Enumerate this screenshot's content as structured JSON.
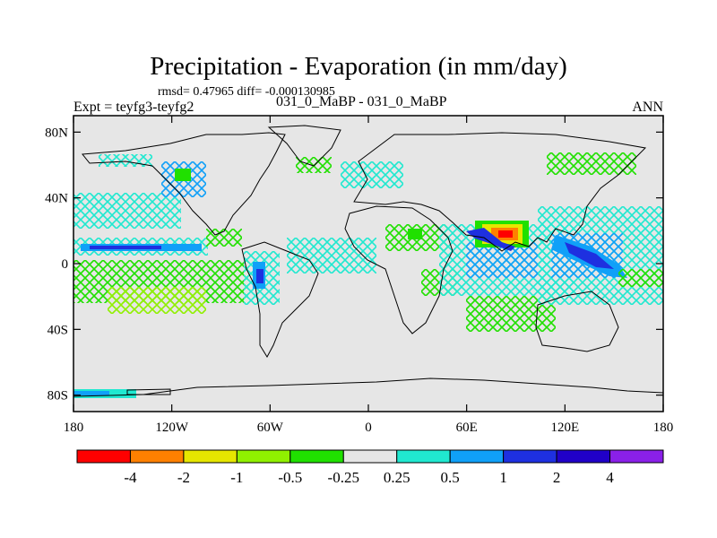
{
  "chart_data": {
    "type": "heatmap",
    "title": "Precipitation - Evaporation (in mm/day)",
    "stats": "rmsd= 0.47965 diff= -0.000130985",
    "experiment": "Expt = teyfg3-teyfg2",
    "subtitle": "031_0_MaBP - 031_0_MaBP",
    "season": "ANN",
    "x_ticks": [
      "180",
      "120W",
      "60W",
      "0",
      "60E",
      "120E",
      "180"
    ],
    "y_ticks": [
      "80N",
      "40N",
      "0",
      "40S",
      "80S"
    ],
    "xlim": [
      -180,
      180
    ],
    "ylim": [
      -90,
      90
    ],
    "colorbar": {
      "labels": [
        "-4",
        "-2",
        "-1",
        "-0.5",
        "-0.25",
        "0.25",
        "0.5",
        "1",
        "2",
        "4"
      ],
      "colors": [
        "#ff0000",
        "#ff8000",
        "#e6e600",
        "#90f000",
        "#20e000",
        "#e6e6e6",
        "#20e8d0",
        "#10a0f8",
        "#1e30e0",
        "#2000c8",
        "#8a20e8"
      ]
    },
    "background_color": "#e6e6e6",
    "features": [
      {
        "name": "itcz-pacific-positive",
        "type": "band",
        "lon": [
          -180,
          -105
        ],
        "lat": [
          5,
          12
        ],
        "level": "0.5"
      },
      {
        "name": "tropical-pacific-negative",
        "type": "hatch",
        "lon": [
          -180,
          -85
        ],
        "lat": [
          -20,
          0
        ],
        "level": "-0.5"
      },
      {
        "name": "north-pacific-positive",
        "type": "hatch",
        "lon": [
          -180,
          -110
        ],
        "lat": [
          25,
          40
        ],
        "level": "0.25"
      },
      {
        "name": "andes-positive",
        "type": "patch",
        "lon": [
          -80,
          -60
        ],
        "lat": [
          -20,
          5
        ],
        "level": "1"
      },
      {
        "name": "indian-ocean-positive",
        "type": "hatch",
        "lon": [
          45,
          110
        ],
        "lat": [
          -10,
          15
        ],
        "level": "0.5"
      },
      {
        "name": "maritime-continent-positive",
        "type": "hatch",
        "lon": [
          100,
          180
        ],
        "lat": [
          -15,
          30
        ],
        "level": "0.5"
      },
      {
        "name": "tibet-dipole",
        "type": "patch",
        "lon": [
          70,
          95
        ],
        "lat": [
          18,
          34
        ],
        "level": "-4"
      },
      {
        "name": "atlantic-positive",
        "type": "hatch",
        "lon": [
          -40,
          15
        ],
        "lat": [
          -5,
          10
        ],
        "level": "0.25"
      },
      {
        "name": "south-indian-negative",
        "type": "hatch",
        "lon": [
          40,
          110
        ],
        "lat": [
          -30,
          -10
        ],
        "level": "-0.25"
      }
    ]
  }
}
